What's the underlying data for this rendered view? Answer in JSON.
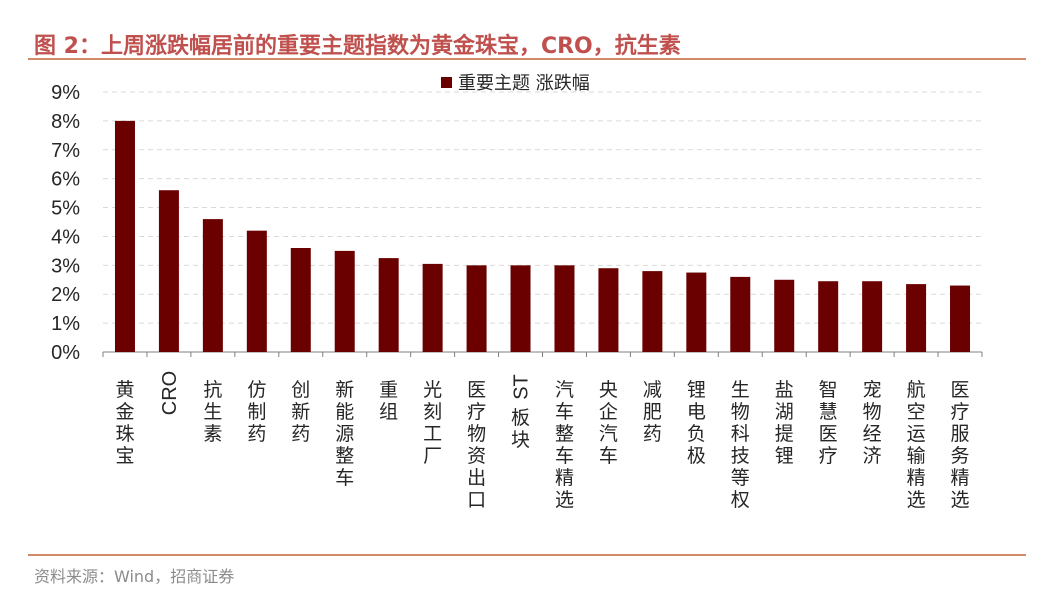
{
  "header": {
    "title": "图 2：上周涨跌幅居前的重要主题指数为黄金珠宝，CRO，抗生素"
  },
  "footer": {
    "source": "资料来源：Wind，招商证券"
  },
  "colors": {
    "bar": "#6b0000",
    "title": "#c0504d",
    "rule": "#d08a6a",
    "grid": "#d9d9d9"
  },
  "chart_data": {
    "type": "bar",
    "legend": [
      "重要主题 涨跌幅"
    ],
    "legend_position": "top-center",
    "grid": true,
    "categories": [
      "黄金珠宝",
      "CRO",
      "抗生素",
      "仿制药",
      "创新药",
      "新能源整车",
      "重组",
      "光刻工厂",
      "医疗物资出口",
      "ST板块",
      "汽车整车精选",
      "央企汽车",
      "减肥药",
      "锂电负极",
      "生物科技等权",
      "盐湖提锂",
      "智慧医疗",
      "宠物经济",
      "航空运输精选",
      "医疗服务精选"
    ],
    "series": [
      {
        "name": "重要主题 涨跌幅",
        "values": [
          8.0,
          5.6,
          4.6,
          4.2,
          3.6,
          3.5,
          3.25,
          3.05,
          3.0,
          3.0,
          3.0,
          2.9,
          2.8,
          2.75,
          2.6,
          2.5,
          2.45,
          2.45,
          2.35,
          2.3
        ]
      }
    ],
    "y_ticks": [
      "0%",
      "1%",
      "2%",
      "3%",
      "4%",
      "5%",
      "6%",
      "7%",
      "8%",
      "9%"
    ],
    "ylim": [
      0,
      9
    ],
    "y_unit": "%"
  }
}
